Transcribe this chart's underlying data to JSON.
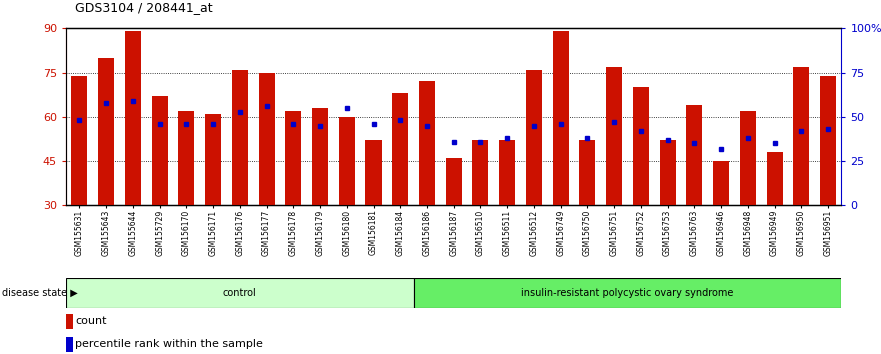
{
  "title": "GDS3104 / 208441_at",
  "samples": [
    "GSM155631",
    "GSM155643",
    "GSM155644",
    "GSM155729",
    "GSM156170",
    "GSM156171",
    "GSM156176",
    "GSM156177",
    "GSM156178",
    "GSM156179",
    "GSM156180",
    "GSM156181",
    "GSM156184",
    "GSM156186",
    "GSM156187",
    "GSM156510",
    "GSM156511",
    "GSM156512",
    "GSM156749",
    "GSM156750",
    "GSM156751",
    "GSM156752",
    "GSM156753",
    "GSM156763",
    "GSM156946",
    "GSM156948",
    "GSM156949",
    "GSM156950",
    "GSM156951"
  ],
  "counts": [
    74,
    80,
    89,
    67,
    62,
    61,
    76,
    75,
    62,
    63,
    60,
    52,
    68,
    72,
    46,
    52,
    52,
    76,
    89,
    52,
    77,
    70,
    52,
    64,
    45,
    62,
    48,
    77,
    74
  ],
  "percentile_ranks": [
    48,
    58,
    59,
    46,
    46,
    46,
    53,
    56,
    46,
    45,
    55,
    46,
    48,
    45,
    36,
    36,
    38,
    45,
    46,
    38,
    47,
    42,
    37,
    35,
    32,
    38,
    35,
    42,
    43
  ],
  "group_labels": [
    "control",
    "insulin-resistant polycystic ovary syndrome"
  ],
  "group_sizes": [
    13,
    16
  ],
  "light_green": "#ccffcc",
  "dark_green": "#66ee66",
  "bar_color": "#cc1100",
  "dot_color": "#0000cc",
  "ylim_left": [
    30,
    90
  ],
  "ylim_right": [
    0,
    100
  ],
  "yticks_left": [
    30,
    45,
    60,
    75,
    90
  ],
  "yticks_right": [
    0,
    25,
    50,
    75,
    100
  ],
  "ytick_labels_right": [
    "0",
    "25",
    "50",
    "75",
    "100%"
  ],
  "grid_lines": [
    45,
    60,
    75
  ]
}
